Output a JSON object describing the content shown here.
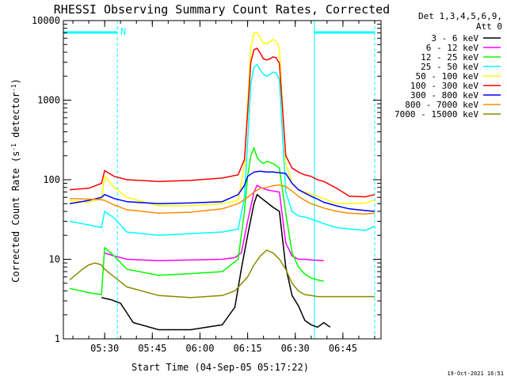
{
  "chart_data": {
    "type": "line",
    "title": "RHESSI Observing Summary Count Rates, Corrected",
    "xlabel": "Start Time (04-Sep-05 05:17:22)",
    "ylabel_main": "Corrected Count Rate (s",
    "ylabel_sup1": "-1",
    "ylabel_mid": " detector",
    "ylabel_sup2": "-1",
    "ylabel_end": ")",
    "y_scale": "log",
    "ylim": [
      1,
      10000
    ],
    "xlim_minutes": [
      0,
      100
    ],
    "x_ticks": [
      {
        "label": "05:30",
        "t": 13
      },
      {
        "label": "05:45",
        "t": 28
      },
      {
        "label": "06:00",
        "t": 43
      },
      {
        "label": "06:15",
        "t": 58
      },
      {
        "label": "06:30",
        "t": 73
      },
      {
        "label": "06:45",
        "t": 88
      }
    ],
    "y_ticks": [
      {
        "label": "1",
        "v": 1
      },
      {
        "label": "10",
        "v": 10
      },
      {
        "label": "100",
        "v": 100
      },
      {
        "label": "1000",
        "v": 1000
      },
      {
        "label": "10000",
        "v": 10000
      }
    ],
    "legend_header": [
      "Det 1,3,4,5,6,9,",
      "Att 0"
    ],
    "legend_position": "right, outside",
    "annotation": "N",
    "timestamp": "19-Oct-2021 16:51",
    "night_intervals_minutes": [
      [
        0,
        17
      ],
      [
        79,
        98
      ]
    ],
    "series": [
      {
        "name": "3 - 6 keV",
        "color": "#000000",
        "x": [
          0,
          12,
          15,
          18,
          22,
          30,
          40,
          50,
          54,
          56,
          58,
          60,
          61,
          62,
          64,
          66,
          68,
          70,
          72,
          74,
          76,
          78,
          80,
          82,
          84
        ],
        "y": [
          null,
          3.3,
          3.1,
          2.8,
          1.6,
          1.3,
          1.3,
          1.5,
          2.5,
          7.5,
          20,
          50,
          65,
          60,
          52,
          45,
          40,
          8,
          3.5,
          2.6,
          1.7,
          1.5,
          1.4,
          1.6,
          1.4
        ]
      },
      {
        "name": "6 - 12 keV",
        "color": "#ff00ff",
        "x": [
          13,
          16,
          20,
          30,
          40,
          50,
          54,
          56,
          58,
          60,
          61,
          62,
          64,
          66,
          68,
          70,
          72,
          74,
          76,
          78,
          80,
          82
        ],
        "y": [
          12,
          11,
          10,
          9.6,
          9.8,
          10,
          10.5,
          12,
          30,
          70,
          85,
          80,
          75,
          72,
          70,
          16,
          11,
          10,
          10,
          9.8,
          9.7,
          9.6
        ]
      },
      {
        "name": "12 - 25 keV",
        "color": "#00ff00",
        "x": [
          2,
          8,
          12,
          13,
          16,
          20,
          30,
          40,
          50,
          55,
          57,
          58,
          59,
          60,
          61,
          62,
          63,
          64,
          66,
          68,
          70,
          72,
          74,
          76,
          78,
          80,
          82
        ],
        "y": [
          4.3,
          3.8,
          3.6,
          14,
          11,
          7.5,
          6.3,
          6.6,
          7,
          10,
          40,
          110,
          200,
          250,
          190,
          170,
          160,
          170,
          160,
          140,
          38,
          12,
          8,
          6.5,
          5.8,
          5.5,
          5.3
        ]
      },
      {
        "name": "25 - 50 keV",
        "color": "#00ffff",
        "x": [
          2,
          8,
          12,
          13,
          16,
          20,
          30,
          40,
          50,
          55,
          57,
          58,
          59,
          60,
          61,
          62,
          63,
          64,
          65,
          66,
          67,
          68,
          70,
          72,
          74,
          76,
          78,
          80,
          82,
          86,
          90,
          95,
          98
        ],
        "y": [
          30,
          27,
          25,
          40,
          33,
          22,
          20,
          21,
          22,
          24,
          60,
          300,
          1600,
          2600,
          2800,
          2400,
          2100,
          2000,
          2100,
          2250,
          2200,
          1800,
          70,
          40,
          35,
          34,
          32,
          30,
          28,
          25,
          24,
          23,
          26
        ]
      },
      {
        "name": "50 - 100 keV",
        "color": "#ffff00",
        "x": [
          2,
          8,
          12,
          13,
          16,
          20,
          30,
          40,
          50,
          55,
          57,
          58,
          59,
          60,
          61,
          62,
          63,
          64,
          65,
          66,
          67,
          68,
          70,
          72,
          74,
          76,
          78,
          80,
          82,
          86,
          90,
          95,
          98
        ],
        "y": [
          55,
          52,
          58,
          110,
          80,
          60,
          47,
          47,
          50,
          55,
          150,
          900,
          4500,
          7000,
          7100,
          6000,
          5200,
          5100,
          5400,
          5800,
          5500,
          4500,
          160,
          90,
          75,
          70,
          66,
          62,
          58,
          50,
          50,
          51,
          56
        ]
      },
      {
        "name": "100 - 300 keV",
        "color": "#ff0000",
        "x": [
          2,
          8,
          12,
          13,
          16,
          20,
          30,
          40,
          50,
          55,
          57,
          58,
          59,
          60,
          61,
          62,
          63,
          64,
          65,
          66,
          67,
          68,
          70,
          72,
          74,
          76,
          78,
          80,
          82,
          86,
          90,
          95,
          98
        ],
        "y": [
          75,
          78,
          90,
          130,
          110,
          100,
          95,
          98,
          105,
          115,
          180,
          700,
          3000,
          4300,
          4500,
          3900,
          3300,
          3200,
          3300,
          3500,
          3400,
          2900,
          200,
          140,
          125,
          115,
          110,
          100,
          95,
          78,
          62,
          61,
          65
        ]
      },
      {
        "name": "300 - 800 keV",
        "color": "#0000ff",
        "x": [
          2,
          8,
          12,
          13,
          16,
          20,
          30,
          40,
          50,
          55,
          57,
          58,
          60,
          62,
          64,
          66,
          68,
          70,
          72,
          74,
          76,
          78,
          80,
          82,
          86,
          90,
          95,
          98
        ],
        "y": [
          50,
          55,
          60,
          65,
          58,
          53,
          50,
          51,
          53,
          65,
          85,
          110,
          125,
          128,
          125,
          125,
          122,
          120,
          90,
          75,
          68,
          62,
          57,
          52,
          47,
          43,
          41,
          40
        ]
      },
      {
        "name": "800 - 7000 keV",
        "color": "#ff8c00",
        "x": [
          2,
          8,
          12,
          13,
          16,
          20,
          30,
          40,
          50,
          55,
          58,
          60,
          62,
          64,
          66,
          68,
          70,
          72,
          74,
          76,
          78,
          80,
          82,
          86,
          90,
          95,
          98
        ],
        "y": [
          58,
          57,
          56,
          55,
          48,
          42,
          38,
          39,
          43,
          50,
          60,
          70,
          78,
          80,
          84,
          86,
          82,
          72,
          62,
          55,
          50,
          47,
          44,
          40,
          38,
          37,
          38
        ]
      },
      {
        "name": "7000 - 15000 keV",
        "color": "#8b8b00",
        "x": [
          2,
          6,
          8,
          10,
          12,
          13,
          16,
          20,
          30,
          40,
          50,
          54,
          58,
          60,
          62,
          64,
          66,
          68,
          70,
          72,
          74,
          76,
          78,
          80,
          82,
          86,
          90,
          95,
          98
        ],
        "y": [
          5.5,
          7.5,
          8.5,
          9,
          8.5,
          7.5,
          6,
          4.5,
          3.5,
          3.3,
          3.5,
          4,
          6,
          8.5,
          11,
          13,
          12,
          10,
          7.5,
          5,
          4,
          3.6,
          3.5,
          3.4,
          3.4,
          3.4,
          3.4,
          3.4,
          3.4
        ]
      }
    ]
  }
}
